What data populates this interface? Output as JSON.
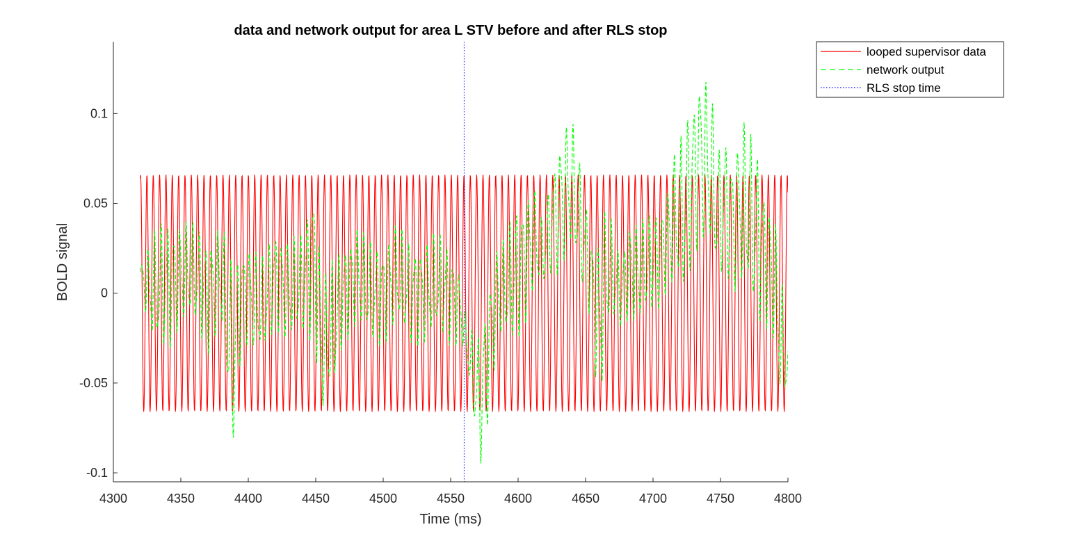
{
  "chart_data": {
    "type": "line",
    "title": "data and network output for area L STV before and after RLS stop",
    "xlabel": "Time (ms)",
    "ylabel": "BOLD signal",
    "xlim": [
      4300,
      4800
    ],
    "ylim": [
      -0.105,
      0.14
    ],
    "x_ticks": [
      4300,
      4350,
      4400,
      4450,
      4500,
      4550,
      4600,
      4650,
      4700,
      4750,
      4800
    ],
    "x_tick_labels": [
      "4300",
      "4350",
      "4400",
      "4450",
      "4500",
      "4550",
      "4600",
      "4650",
      "4700",
      "4750",
      "4800"
    ],
    "y_ticks": [
      -0.1,
      -0.05,
      0,
      0.05,
      0.1
    ],
    "y_tick_labels": [
      "-0.1",
      "-0.05",
      "0",
      "0.05",
      "0.1"
    ],
    "grid": false,
    "legend_position": "outside-top-right",
    "series": [
      {
        "name": "looped supervisor data",
        "style": "solid",
        "color": "#ff0000",
        "x_start": 4320,
        "x_end": 4800,
        "amplitude": 0.066,
        "period_ms": 4.7,
        "start_value": 0.064
      },
      {
        "name": "network output",
        "style": "dashed",
        "color": "#00ff00",
        "x": [
          4320,
          4330,
          4340,
          4350,
          4360,
          4370,
          4380,
          4388,
          4395,
          4400,
          4410,
          4420,
          4430,
          4440,
          4449,
          4455,
          4463,
          4470,
          4480,
          4490,
          4500,
          4510,
          4520,
          4530,
          4540,
          4550,
          4558,
          4562,
          4568,
          4572,
          4578,
          4585,
          4590,
          4597,
          4605,
          4612,
          4618,
          4625,
          4630,
          4638,
          4643,
          4648,
          4652,
          4656,
          4660,
          4665,
          4670,
          4676,
          4682,
          4690,
          4697,
          4704,
          4710,
          4716,
          4722,
          4728,
          4735,
          4742,
          4748,
          4754,
          4760,
          4766,
          4772,
          4778,
          4784,
          4790,
          4795,
          4800
        ],
        "center": [
          0.01,
          0.0,
          0.005,
          0.012,
          0.01,
          0.0,
          0.01,
          -0.04,
          0.0,
          0.0,
          -0.01,
          0.01,
          0.0,
          0.005,
          0.02,
          -0.03,
          -0.02,
          0.0,
          0.01,
          0.0,
          0.0,
          0.01,
          0.0,
          0.0,
          0.005,
          0.0,
          -0.01,
          -0.03,
          -0.05,
          -0.06,
          -0.03,
          0.0,
          0.0,
          0.01,
          0.02,
          0.03,
          0.02,
          0.04,
          0.05,
          0.06,
          0.05,
          0.03,
          0.02,
          0.0,
          -0.02,
          0.01,
          0.01,
          0.0,
          0.015,
          0.01,
          0.015,
          0.02,
          0.03,
          0.04,
          0.04,
          0.06,
          0.08,
          0.07,
          0.04,
          0.05,
          0.04,
          0.05,
          0.04,
          0.03,
          0.02,
          0.01,
          -0.03,
          -0.04
        ],
        "swing": [
          0.008,
          0.035,
          0.04,
          0.03,
          0.03,
          0.035,
          0.03,
          0.06,
          0.03,
          0.03,
          0.03,
          0.03,
          0.03,
          0.03,
          0.05,
          0.04,
          0.04,
          0.03,
          0.03,
          0.03,
          0.03,
          0.03,
          0.03,
          0.03,
          0.03,
          0.03,
          0.02,
          0.01,
          0.03,
          0.04,
          0.04,
          0.03,
          0.03,
          0.04,
          0.04,
          0.03,
          0.02,
          0.03,
          0.04,
          0.04,
          0.04,
          0.03,
          0.03,
          0.03,
          0.06,
          0.04,
          0.03,
          0.02,
          0.03,
          0.03,
          0.03,
          0.03,
          0.03,
          0.04,
          0.05,
          0.05,
          0.05,
          0.05,
          0.04,
          0.04,
          0.04,
          0.05,
          0.05,
          0.05,
          0.04,
          0.04,
          0.04,
          0.02
        ],
        "period_ms": 4.7
      },
      {
        "name": "RLS stop time",
        "style": "dotted",
        "color": "#0000ff",
        "x": 4560
      }
    ]
  }
}
